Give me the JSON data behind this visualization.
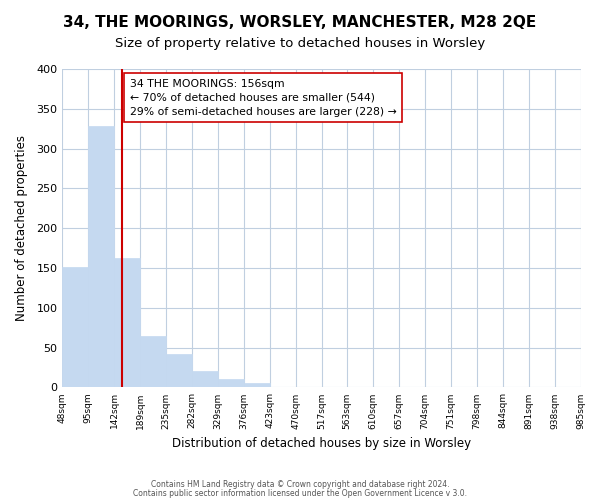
{
  "title": "34, THE MOORINGS, WORSLEY, MANCHESTER, M28 2QE",
  "subtitle": "Size of property relative to detached houses in Worsley",
  "xlabel": "Distribution of detached houses by size in Worsley",
  "ylabel": "Number of detached properties",
  "bar_edges": [
    48,
    95,
    142,
    189,
    235,
    282,
    329,
    376,
    423,
    470,
    517,
    563,
    610,
    657,
    704,
    751,
    798,
    844,
    891,
    938,
    985
  ],
  "bar_heights": [
    151,
    328,
    163,
    64,
    42,
    21,
    10,
    5,
    0,
    0,
    0,
    0,
    0,
    0,
    0,
    0,
    0,
    0,
    0,
    0
  ],
  "bar_color": "#c5d9f0",
  "bar_edge_color": "#c5d9f0",
  "property_line_x": 156,
  "property_line_color": "#cc0000",
  "annotation_title": "34 THE MOORINGS: 156sqm",
  "annotation_line1": "← 70% of detached houses are smaller (544)",
  "annotation_line2": "29% of semi-detached houses are larger (228) →",
  "annotation_box_color": "#ffffff",
  "annotation_box_edge": "#cc0000",
  "ylim": [
    0,
    400
  ],
  "yticks": [
    0,
    50,
    100,
    150,
    200,
    250,
    300,
    350,
    400
  ],
  "footer1": "Contains HM Land Registry data © Crown copyright and database right 2024.",
  "footer2": "Contains public sector information licensed under the Open Government Licence v 3.0.",
  "background_color": "#ffffff",
  "grid_color": "#c0cfe0",
  "title_fontsize": 11,
  "subtitle_fontsize": 9.5
}
